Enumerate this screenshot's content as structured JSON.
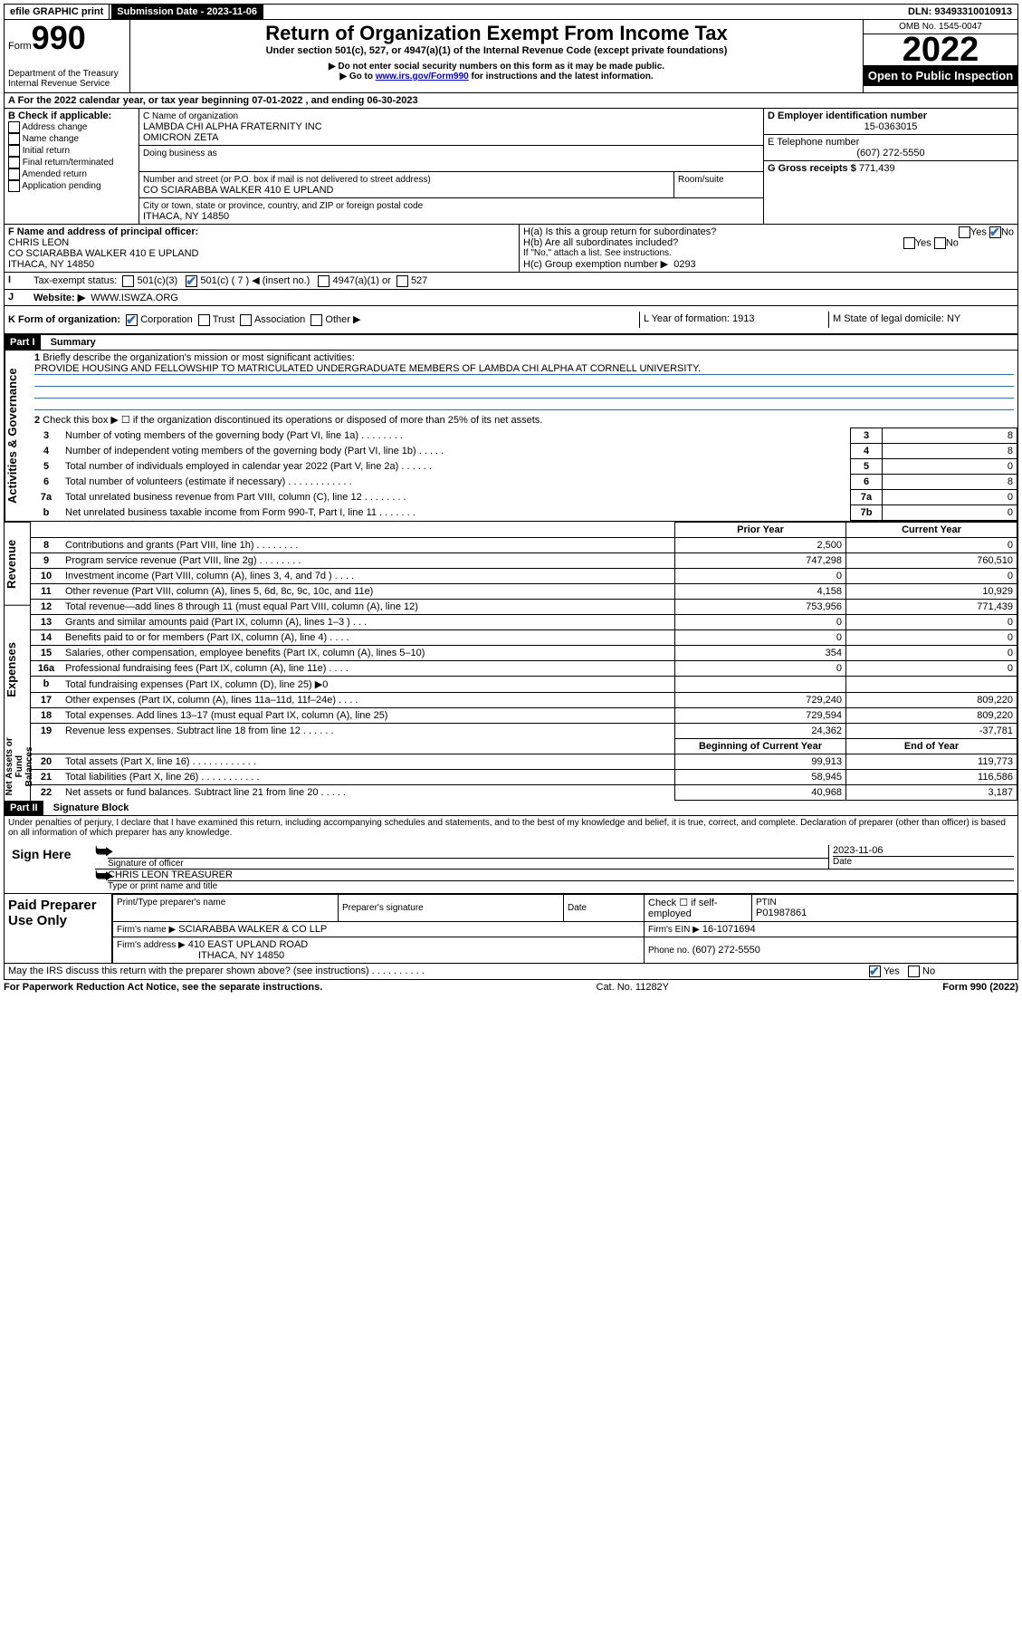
{
  "topbar": {
    "efile": "efile GRAPHIC print",
    "submission_label": "Submission Date - 2023-11-06",
    "dln": "DLN: 93493310010913"
  },
  "header": {
    "form_word": "Form",
    "form_number": "990",
    "dept": "Department of the Treasury",
    "irs": "Internal Revenue Service",
    "title": "Return of Organization Exempt From Income Tax",
    "subtitle": "Under section 501(c), 527, or 4947(a)(1) of the Internal Revenue Code (except private foundations)",
    "note1": "▶ Do not enter social security numbers on this form as it may be made public.",
    "note2_pre": "▶ Go to ",
    "note2_link": "www.irs.gov/Form990",
    "note2_post": " for instructions and the latest information.",
    "omb": "OMB No. 1545-0047",
    "year": "2022",
    "inspect": "Open to Public Inspection"
  },
  "period": {
    "line_a": "A For the 2022 calendar year, or tax year beginning 07-01-2022    , and ending 06-30-2023",
    "b_label": "B Check if applicable:",
    "b_opts": [
      "Address change",
      "Name change",
      "Initial return",
      "Final return/terminated",
      "Amended return",
      "Application pending"
    ],
    "c_label": "C Name of organization",
    "org1": "LAMBDA CHI ALPHA FRATERNITY INC",
    "org2": "OMICRON ZETA",
    "dba_label": "Doing business as",
    "addr_label": "Number and street (or P.O. box if mail is not delivered to street address)",
    "addr": "CO SCIARABBA WALKER 410 E UPLAND",
    "room": "Room/suite",
    "city_label": "City or town, state or province, country, and ZIP or foreign postal code",
    "city": "ITHACA, NY  14850",
    "d_label": "D Employer identification number",
    "ein": "15-0363015",
    "e_label": "E Telephone number",
    "phone": "(607) 272-5550",
    "g_label": "G Gross receipts $",
    "g_val": "771,439",
    "f_label": "F Name and address of principal officer:",
    "f_name": "CHRIS LEON",
    "f_addr1": "CO SCIARABBA WALKER 410 E UPLAND",
    "f_addr2": "ITHACA, NY  14850",
    "ha": "H(a)  Is this a group return for subordinates?",
    "hb": "H(b)  Are all subordinates included?",
    "hb_note": "If \"No,\" attach a list. See instructions.",
    "hc": "H(c)  Group exemption number ▶",
    "hc_val": "0293",
    "i_label": "Tax-exempt status:",
    "i_501c3": "501(c)(3)",
    "i_501c": "501(c) ( 7 ) ◀ (insert no.)",
    "i_4947": "4947(a)(1) or",
    "i_527": "527",
    "j_label": "Website: ▶",
    "website": "WWW.ISWZA.ORG",
    "k_label": "K Form of organization:",
    "k_opts": [
      "Corporation",
      "Trust",
      "Association",
      "Other ▶"
    ],
    "l_label": "L Year of formation: 1913",
    "m_label": "M State of legal domicile: NY",
    "yes": "Yes",
    "no": "No"
  },
  "part1": {
    "head": "Part I",
    "title": "Summary",
    "line1": "Briefly describe the organization's mission or most significant activities:",
    "mission": "PROVIDE HOUSING AND FELLOWSHIP TO MATRICULATED UNDERGRADUATE MEMBERS OF LAMBDA CHI ALPHA AT CORNELL UNIVERSITY.",
    "line2": "Check this box ▶ ☐  if the organization discontinued its operations or disposed of more than 25% of its net assets.",
    "sideA": "Activities & Governance",
    "sideR": "Revenue",
    "sideE": "Expenses",
    "sideN": "Net Assets or Fund Balances",
    "rows_gov": [
      {
        "n": "3",
        "t": "Number of voting members of the governing body (Part VI, line 1a)  .    .    .    .    .    .    .    .",
        "box": "3",
        "v": "8"
      },
      {
        "n": "4",
        "t": "Number of independent voting members of the governing body (Part VI, line 1b)   .    .    .    .    .",
        "box": "4",
        "v": "8"
      },
      {
        "n": "5",
        "t": "Total number of individuals employed in calendar year 2022 (Part V, line 2a)   .    .    .    .    .    .",
        "box": "5",
        "v": "0"
      },
      {
        "n": "6",
        "t": "Total number of volunteers (estimate if necessary)   .    .    .    .    .    .    .    .    .    .    .    .",
        "box": "6",
        "v": "8"
      },
      {
        "n": "7a",
        "t": "Total unrelated business revenue from Part VIII, column (C), line 12   .    .    .    .    .    .    .    .",
        "box": "7a",
        "v": "0"
      },
      {
        "n": "b",
        "t": "Net unrelated business taxable income from Form 990-T, Part I, line 11   .    .    .    .    .    .    .",
        "box": "7b",
        "v": "0"
      }
    ],
    "col_prior": "Prior Year",
    "col_current": "Current Year",
    "rows_rev": [
      {
        "n": "8",
        "t": "Contributions and grants (Part VIII, line 1h)   .    .    .    .    .    .    .    .",
        "p": "2,500",
        "c": "0"
      },
      {
        "n": "9",
        "t": "Program service revenue (Part VIII, line 2g)   .    .    .    .    .    .    .    .",
        "p": "747,298",
        "c": "760,510"
      },
      {
        "n": "10",
        "t": "Investment income (Part VIII, column (A), lines 3, 4, and 7d )   .    .    .    .",
        "p": "0",
        "c": "0"
      },
      {
        "n": "11",
        "t": "Other revenue (Part VIII, column (A), lines 5, 6d, 8c, 9c, 10c, and 11e)",
        "p": "4,158",
        "c": "10,929"
      },
      {
        "n": "12",
        "t": "Total revenue—add lines 8 through 11 (must equal Part VIII, column (A), line 12)",
        "p": "753,956",
        "c": "771,439"
      }
    ],
    "rows_exp": [
      {
        "n": "13",
        "t": "Grants and similar amounts paid (Part IX, column (A), lines 1–3 )   .    .    .",
        "p": "0",
        "c": "0"
      },
      {
        "n": "14",
        "t": "Benefits paid to or for members (Part IX, column (A), line 4)   .    .    .    .",
        "p": "0",
        "c": "0"
      },
      {
        "n": "15",
        "t": "Salaries, other compensation, employee benefits (Part IX, column (A), lines 5–10)",
        "p": "354",
        "c": "0"
      },
      {
        "n": "16a",
        "t": "Professional fundraising fees (Part IX, column (A), line 11e)   .    .    .    .",
        "p": "0",
        "c": "0"
      },
      {
        "n": "b",
        "t": "Total fundraising expenses (Part IX, column (D), line 25) ▶0",
        "p": "",
        "c": "",
        "grey": true
      },
      {
        "n": "17",
        "t": "Other expenses (Part IX, column (A), lines 11a–11d, 11f–24e)   .    .    .    .",
        "p": "729,240",
        "c": "809,220"
      },
      {
        "n": "18",
        "t": "Total expenses. Add lines 13–17 (must equal Part IX, column (A), line 25)",
        "p": "729,594",
        "c": "809,220"
      },
      {
        "n": "19",
        "t": "Revenue less expenses. Subtract line 18 from line 12   .    .    .    .    .    .",
        "p": "24,362",
        "c": "-37,781"
      }
    ],
    "col_begin": "Beginning of Current Year",
    "col_end": "End of Year",
    "rows_net": [
      {
        "n": "20",
        "t": "Total assets (Part X, line 16)   .    .    .    .    .    .    .    .    .    .    .    .",
        "p": "99,913",
        "c": "119,773"
      },
      {
        "n": "21",
        "t": "Total liabilities (Part X, line 26)   .    .    .    .    .    .    .    .    .    .    .",
        "p": "58,945",
        "c": "116,586"
      },
      {
        "n": "22",
        "t": "Net assets or fund balances. Subtract line 21 from line 20   .    .    .    .    .",
        "p": "40,968",
        "c": "3,187"
      }
    ]
  },
  "part2": {
    "head": "Part II",
    "title": "Signature Block",
    "decl": "Under penalties of perjury, I declare that I have examined this return, including accompanying schedules and statements, and to the best of my knowledge and belief, it is true, correct, and complete. Declaration of preparer (other than officer) is based on all information of which preparer has any knowledge.",
    "sign_here": "Sign Here",
    "sig_officer": "Signature of officer",
    "sig_date": "2023-11-06",
    "date_lbl": "Date",
    "name_title": "CHRIS LEON  TREASURER",
    "type_name": "Type or print name and title",
    "paid": "Paid Preparer Use Only",
    "pp_name_lbl": "Print/Type preparer's name",
    "pp_sig_lbl": "Preparer's signature",
    "pp_date": "Date",
    "pp_check": "Check ☐ if self-employed",
    "ptin_lbl": "PTIN",
    "ptin": "P01987861",
    "firm_name_lbl": "Firm's name    ▶",
    "firm_name": "SCIARABBA WALKER & CO LLP",
    "firm_ein_lbl": "Firm's EIN ▶",
    "firm_ein": "16-1071694",
    "firm_addr_lbl": "Firm's address ▶",
    "firm_addr1": "410 EAST UPLAND ROAD",
    "firm_addr2": "ITHACA, NY  14850",
    "firm_phone_lbl": "Phone no.",
    "firm_phone": "(607) 272-5550",
    "may_irs": "May the IRS discuss this return with the preparer shown above? (see instructions)   .    .    .    .    .    .    .    .    .    .",
    "footer_left": "For Paperwork Reduction Act Notice, see the separate instructions.",
    "footer_mid": "Cat. No. 11282Y",
    "footer_right": "Form 990 (2022)"
  }
}
